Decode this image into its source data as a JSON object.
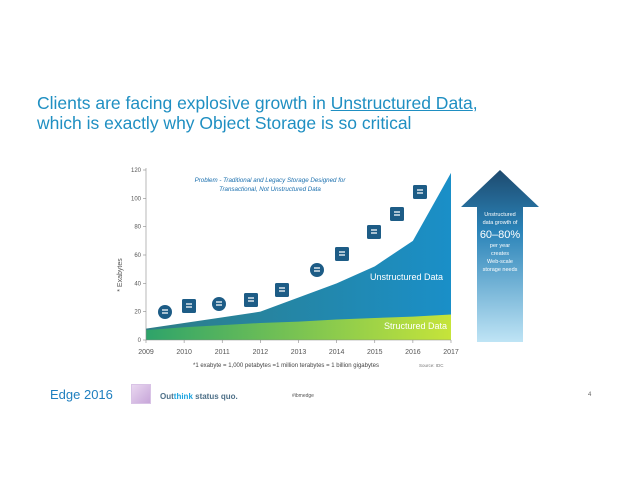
{
  "title": {
    "part1": "Clients are facing explosive growth in ",
    "link": "Unstructured Data",
    "part2": ",",
    "line2": "which is exactly why Object Storage is so critical"
  },
  "chart_data": {
    "type": "area",
    "x": [
      2009,
      2010,
      2011,
      2012,
      2013,
      2014,
      2015,
      2016,
      2017
    ],
    "series": [
      {
        "name": "Structured Data",
        "values": [
          7,
          9,
          10.5,
          12,
          13,
          14.5,
          15.5,
          16.5,
          18
        ]
      },
      {
        "name": "Unstructured Data",
        "values": [
          8,
          12,
          16,
          20,
          30,
          40,
          52,
          70,
          118
        ]
      }
    ],
    "xlabel": "",
    "ylabel": "* Exabytes",
    "ylim": [
      0,
      120
    ],
    "yticks": [
      0,
      20,
      40,
      60,
      80,
      100,
      120
    ],
    "grid": false,
    "annotation": "Problem - Traditional and Legacy Storage Designed for Transactional, Not Unstructured Data",
    "footnote": "*1 exabyte = 1,000 petabytes =1 million terabytes = 1 billion gigabytes",
    "source": "Source: IDC",
    "colors": {
      "structured": "#8cc63f",
      "unstructured": "#1a7fa8",
      "arrow": "#1e4a6e"
    }
  },
  "sidebar": {
    "line1": "Unstructured",
    "line2": "data growth of",
    "big": "60–80%",
    "line3": "per year",
    "line4": "creates",
    "line5": "Web-scale",
    "line6": "storage needs"
  },
  "icons": [
    "dollar-icon",
    "document-icon",
    "play-icon",
    "mail-icon",
    "image-icon",
    "rss-icon",
    "speaker-icon",
    "chat-icon",
    "music-icon",
    "check-icon"
  ],
  "footer": {
    "brand": "Edge 2016",
    "tagline_prefix": "Out",
    "tagline_bold": "think",
    "tagline_suffix": " status quo.",
    "hashtag": "#ibmedge",
    "page": "4"
  }
}
